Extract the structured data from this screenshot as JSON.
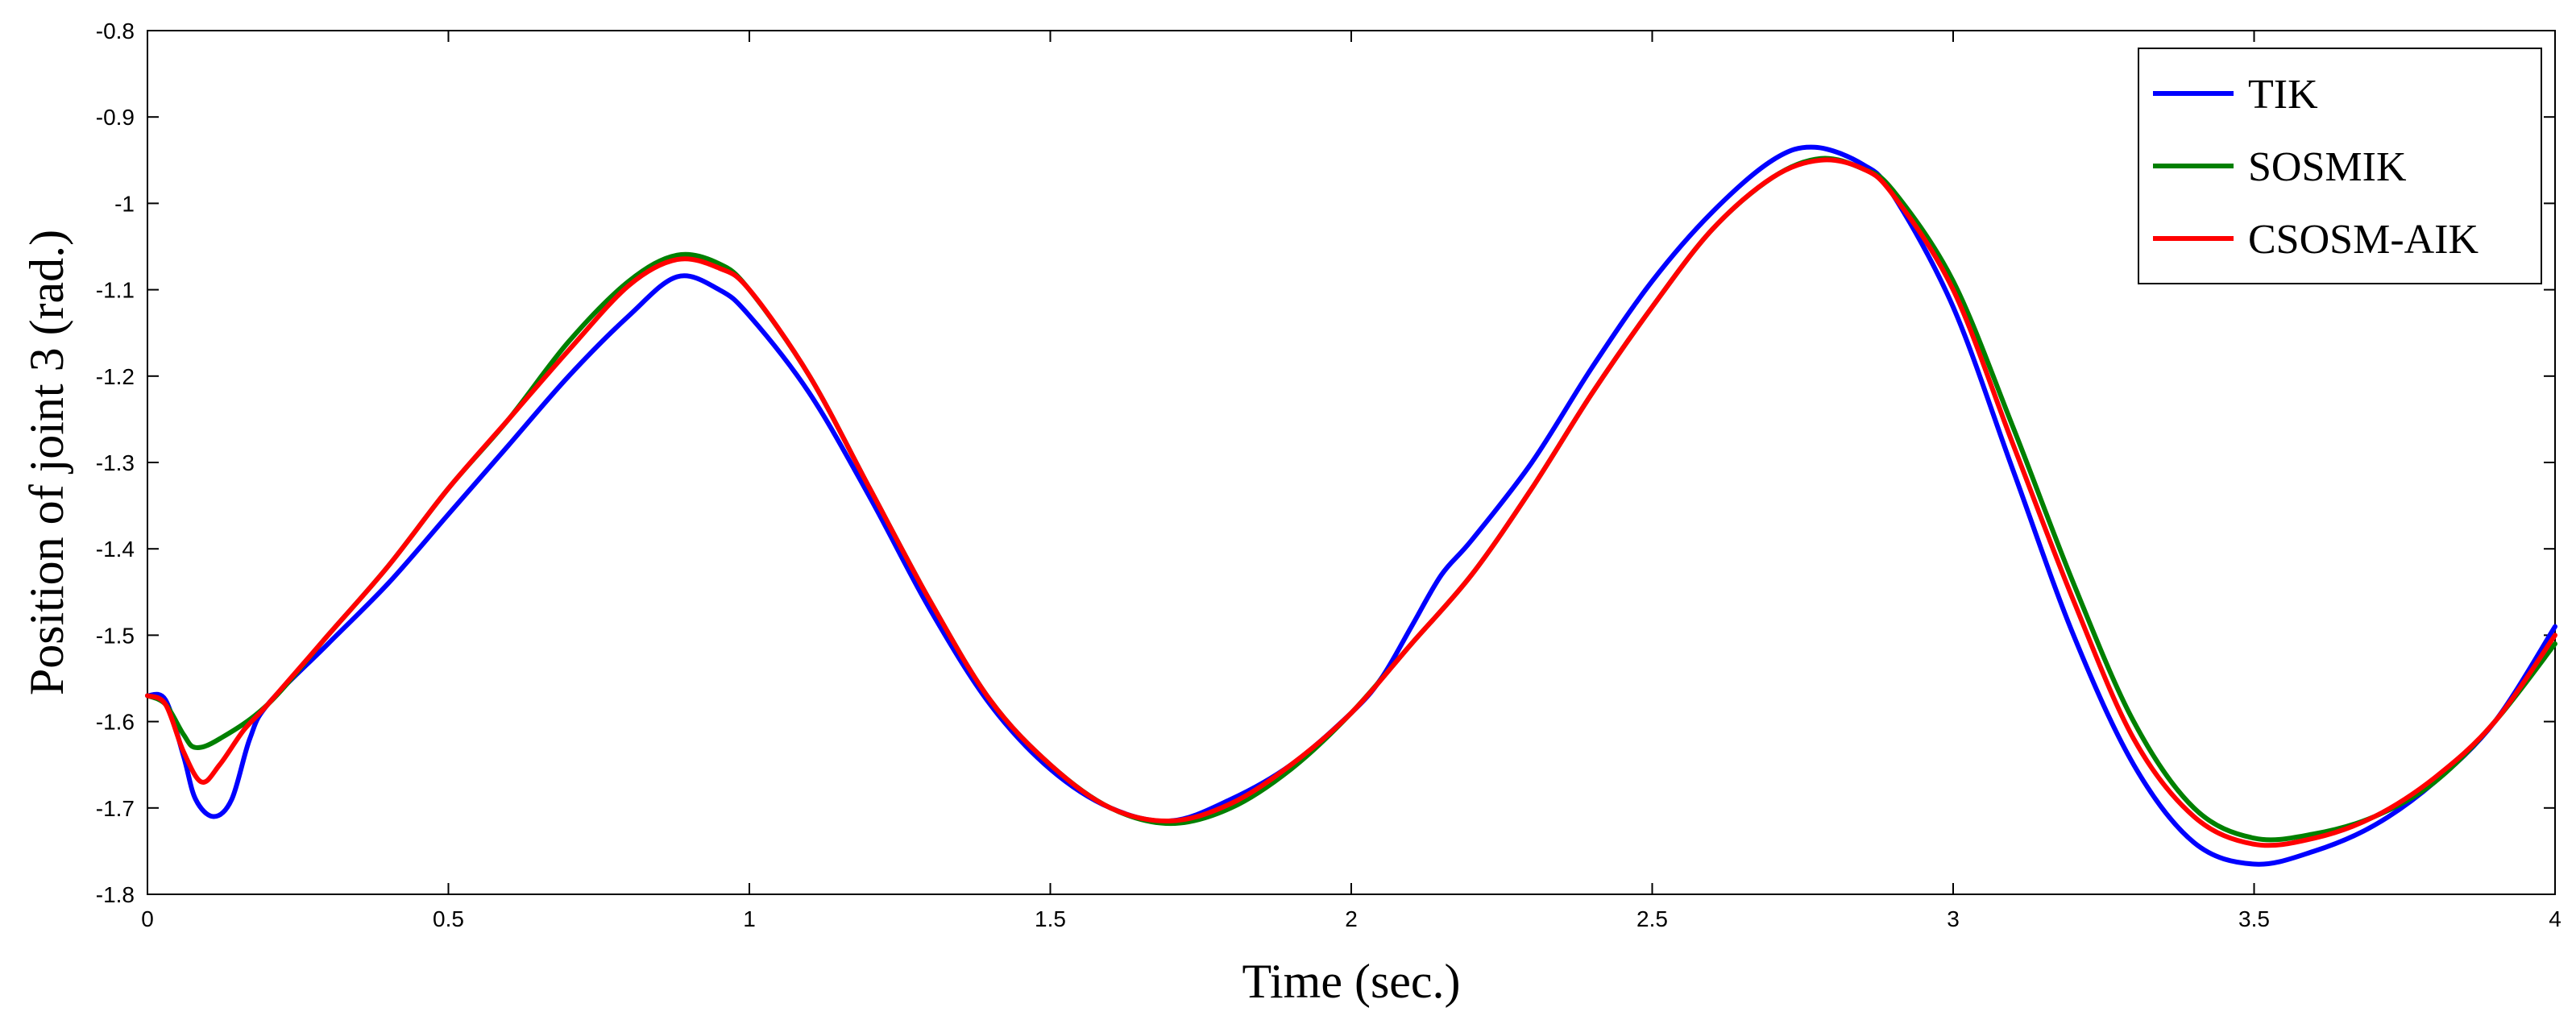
{
  "chart_data": {
    "type": "line",
    "title": "",
    "xlabel": "Time (sec.)",
    "ylabel": "Position of joint 3 (rad.)",
    "xlim": [
      0,
      4
    ],
    "ylim": [
      -1.8,
      -0.8
    ],
    "xticks": [
      0,
      0.5,
      1,
      1.5,
      2,
      2.5,
      3,
      3.5,
      4
    ],
    "xtick_labels": [
      "0",
      "0.5",
      "1",
      "1.5",
      "2",
      "2.5",
      "3",
      "3.5",
      "4"
    ],
    "yticks": [
      -0.8,
      -0.9,
      -1,
      -1.1,
      -1.2,
      -1.3,
      -1.4,
      -1.5,
      -1.6,
      -1.7,
      -1.8
    ],
    "ytick_labels": [
      "-0.8",
      "-0.9",
      "-1",
      "-1.1",
      "-1.2",
      "-1.3",
      "-1.4",
      "-1.5",
      "-1.6",
      "-1.7",
      "-1.8"
    ],
    "grid": false,
    "legend_position": "top-right",
    "series": [
      {
        "name": "TIK",
        "color": "#0000ff",
        "points": [
          [
            0,
            -1.57
          ],
          [
            0.03,
            -1.575
          ],
          [
            0.06,
            -1.64
          ],
          [
            0.08,
            -1.69
          ],
          [
            0.11,
            -1.71
          ],
          [
            0.14,
            -1.69
          ],
          [
            0.17,
            -1.62
          ],
          [
            0.2,
            -1.58
          ],
          [
            0.3,
            -1.51
          ],
          [
            0.4,
            -1.44
          ],
          [
            0.5,
            -1.36
          ],
          [
            0.6,
            -1.28
          ],
          [
            0.7,
            -1.2
          ],
          [
            0.8,
            -1.13
          ],
          [
            0.88,
            -1.085
          ],
          [
            0.95,
            -1.1
          ],
          [
            1.0,
            -1.13
          ],
          [
            1.1,
            -1.22
          ],
          [
            1.2,
            -1.34
          ],
          [
            1.3,
            -1.47
          ],
          [
            1.4,
            -1.58
          ],
          [
            1.5,
            -1.655
          ],
          [
            1.6,
            -1.7
          ],
          [
            1.7,
            -1.715
          ],
          [
            1.8,
            -1.69
          ],
          [
            1.9,
            -1.65
          ],
          [
            2.0,
            -1.59
          ],
          [
            2.05,
            -1.55
          ],
          [
            2.1,
            -1.49
          ],
          [
            2.15,
            -1.43
          ],
          [
            2.2,
            -1.39
          ],
          [
            2.3,
            -1.3
          ],
          [
            2.4,
            -1.19
          ],
          [
            2.5,
            -1.09
          ],
          [
            2.6,
            -1.01
          ],
          [
            2.7,
            -0.95
          ],
          [
            2.77,
            -0.935
          ],
          [
            2.85,
            -0.955
          ],
          [
            2.9,
            -0.99
          ],
          [
            3.0,
            -1.12
          ],
          [
            3.1,
            -1.31
          ],
          [
            3.2,
            -1.5
          ],
          [
            3.3,
            -1.65
          ],
          [
            3.4,
            -1.74
          ],
          [
            3.5,
            -1.765
          ],
          [
            3.6,
            -1.75
          ],
          [
            3.7,
            -1.72
          ],
          [
            3.8,
            -1.67
          ],
          [
            3.9,
            -1.6
          ],
          [
            4.0,
            -1.49
          ]
        ]
      },
      {
        "name": "SOSMIK",
        "color": "#008000",
        "points": [
          [
            0,
            -1.57
          ],
          [
            0.03,
            -1.58
          ],
          [
            0.06,
            -1.615
          ],
          [
            0.08,
            -1.63
          ],
          [
            0.12,
            -1.62
          ],
          [
            0.2,
            -1.58
          ],
          [
            0.3,
            -1.5
          ],
          [
            0.4,
            -1.42
          ],
          [
            0.5,
            -1.33
          ],
          [
            0.6,
            -1.25
          ],
          [
            0.7,
            -1.16
          ],
          [
            0.8,
            -1.09
          ],
          [
            0.88,
            -1.06
          ],
          [
            0.95,
            -1.07
          ],
          [
            1.0,
            -1.1
          ],
          [
            1.1,
            -1.2
          ],
          [
            1.2,
            -1.33
          ],
          [
            1.3,
            -1.46
          ],
          [
            1.4,
            -1.575
          ],
          [
            1.5,
            -1.65
          ],
          [
            1.6,
            -1.7
          ],
          [
            1.7,
            -1.718
          ],
          [
            1.8,
            -1.7
          ],
          [
            1.9,
            -1.655
          ],
          [
            2.0,
            -1.59
          ],
          [
            2.1,
            -1.51
          ],
          [
            2.2,
            -1.43
          ],
          [
            2.3,
            -1.33
          ],
          [
            2.4,
            -1.22
          ],
          [
            2.5,
            -1.12
          ],
          [
            2.6,
            -1.03
          ],
          [
            2.7,
            -0.97
          ],
          [
            2.78,
            -0.948
          ],
          [
            2.85,
            -0.96
          ],
          [
            2.9,
            -0.985
          ],
          [
            3.0,
            -1.09
          ],
          [
            3.1,
            -1.26
          ],
          [
            3.2,
            -1.44
          ],
          [
            3.3,
            -1.6
          ],
          [
            3.4,
            -1.7
          ],
          [
            3.5,
            -1.735
          ],
          [
            3.6,
            -1.73
          ],
          [
            3.7,
            -1.71
          ],
          [
            3.8,
            -1.67
          ],
          [
            3.9,
            -1.6
          ],
          [
            4.0,
            -1.51
          ]
        ]
      },
      {
        "name": "CSOSM-AIK",
        "color": "#ff0000",
        "points": [
          [
            0,
            -1.57
          ],
          [
            0.03,
            -1.58
          ],
          [
            0.06,
            -1.635
          ],
          [
            0.09,
            -1.67
          ],
          [
            0.12,
            -1.65
          ],
          [
            0.16,
            -1.61
          ],
          [
            0.2,
            -1.58
          ],
          [
            0.3,
            -1.5
          ],
          [
            0.4,
            -1.42
          ],
          [
            0.5,
            -1.33
          ],
          [
            0.6,
            -1.25
          ],
          [
            0.7,
            -1.17
          ],
          [
            0.8,
            -1.095
          ],
          [
            0.88,
            -1.065
          ],
          [
            0.95,
            -1.075
          ],
          [
            1.0,
            -1.1
          ],
          [
            1.1,
            -1.2
          ],
          [
            1.2,
            -1.33
          ],
          [
            1.3,
            -1.46
          ],
          [
            1.4,
            -1.575
          ],
          [
            1.5,
            -1.65
          ],
          [
            1.6,
            -1.7
          ],
          [
            1.7,
            -1.715
          ],
          [
            1.8,
            -1.695
          ],
          [
            1.9,
            -1.65
          ],
          [
            2.0,
            -1.59
          ],
          [
            2.1,
            -1.51
          ],
          [
            2.2,
            -1.43
          ],
          [
            2.3,
            -1.33
          ],
          [
            2.4,
            -1.22
          ],
          [
            2.5,
            -1.12
          ],
          [
            2.6,
            -1.03
          ],
          [
            2.7,
            -0.97
          ],
          [
            2.78,
            -0.95
          ],
          [
            2.85,
            -0.96
          ],
          [
            2.9,
            -0.99
          ],
          [
            3.0,
            -1.1
          ],
          [
            3.1,
            -1.28
          ],
          [
            3.2,
            -1.46
          ],
          [
            3.3,
            -1.62
          ],
          [
            3.4,
            -1.71
          ],
          [
            3.5,
            -1.742
          ],
          [
            3.6,
            -1.735
          ],
          [
            3.7,
            -1.71
          ],
          [
            3.8,
            -1.665
          ],
          [
            3.9,
            -1.6
          ],
          [
            4.0,
            -1.5
          ]
        ]
      }
    ]
  }
}
